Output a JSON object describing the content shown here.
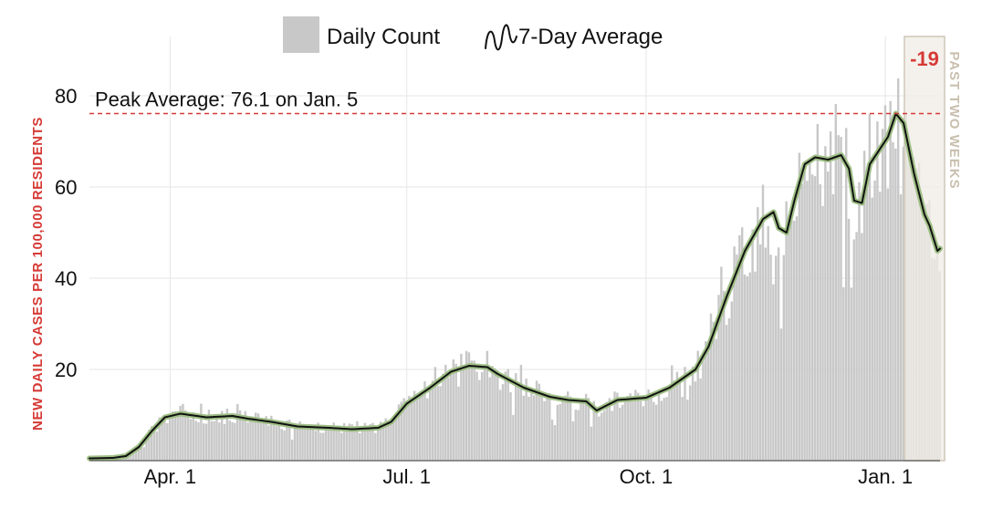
{
  "chart_data": {
    "type": "bar",
    "ylabel": "NEW DAILY CASES PER 100,000 RESIDENTS",
    "xlabel": "",
    "ylim": [
      0,
      93
    ],
    "yticks": [
      20,
      40,
      60,
      80
    ],
    "xtick_labels": [
      "Apr. 1",
      "Jul. 1",
      "Oct. 1",
      "Jan. 1"
    ],
    "grid": true,
    "legend": {
      "placement": "top-center",
      "items": [
        {
          "label": "Daily Count",
          "color": "#c8c8c8"
        },
        {
          "label": "7-Day Average",
          "color": "#111111"
        }
      ]
    },
    "peak_annotation": {
      "label": "Peak Average: 76.1 on Jan. 5",
      "value": 76.1
    },
    "window": {
      "label": "PAST TWO WEEKS",
      "change": "-19",
      "fill": "#f0ece6",
      "stroke": "#cfc7b8"
    },
    "colors": {
      "bars": "#c8c8c8",
      "average_line": "#111111",
      "average_halo": "#9fbf86",
      "peak_line": "#d63a36"
    },
    "x_range": [
      "2020-03-01",
      "2021-01-22"
    ],
    "window_start": "2021-01-09",
    "series": [
      {
        "name": "7-Day Average",
        "points": [
          [
            "2020-03-01",
            0.5
          ],
          [
            "2020-03-10",
            0.6
          ],
          [
            "2020-03-15",
            1.0
          ],
          [
            "2020-03-20",
            3.0
          ],
          [
            "2020-03-25",
            6.5
          ],
          [
            "2020-03-30",
            9.5
          ],
          [
            "2020-04-05",
            10.3
          ],
          [
            "2020-04-15",
            9.5
          ],
          [
            "2020-04-25",
            9.8
          ],
          [
            "2020-05-01",
            9.2
          ],
          [
            "2020-05-10",
            8.5
          ],
          [
            "2020-05-20",
            7.5
          ],
          [
            "2020-06-01",
            7.2
          ],
          [
            "2020-06-10",
            6.9
          ],
          [
            "2020-06-20",
            7.2
          ],
          [
            "2020-06-25",
            8.5
          ],
          [
            "2020-07-01",
            12.5
          ],
          [
            "2020-07-10",
            16.0
          ],
          [
            "2020-07-18",
            19.5
          ],
          [
            "2020-07-25",
            20.8
          ],
          [
            "2020-08-01",
            20.5
          ],
          [
            "2020-08-05",
            19.0
          ],
          [
            "2020-08-15",
            16.0
          ],
          [
            "2020-08-25",
            14.0
          ],
          [
            "2020-09-01",
            13.3
          ],
          [
            "2020-09-08",
            13.0
          ],
          [
            "2020-09-12",
            11.0
          ],
          [
            "2020-09-20",
            13.3
          ],
          [
            "2020-10-01",
            13.8
          ],
          [
            "2020-10-10",
            16.0
          ],
          [
            "2020-10-20",
            20.0
          ],
          [
            "2020-10-25",
            25.0
          ],
          [
            "2020-11-01",
            36.0
          ],
          [
            "2020-11-08",
            46.0
          ],
          [
            "2020-11-15",
            53.0
          ],
          [
            "2020-11-19",
            54.5
          ],
          [
            "2020-11-21",
            51.0
          ],
          [
            "2020-11-24",
            50.0
          ],
          [
            "2020-11-27",
            57.0
          ],
          [
            "2020-12-01",
            65.0
          ],
          [
            "2020-12-05",
            66.5
          ],
          [
            "2020-12-10",
            66.0
          ],
          [
            "2020-12-15",
            67.0
          ],
          [
            "2020-12-18",
            64.0
          ],
          [
            "2020-12-20",
            57.0
          ],
          [
            "2020-12-23",
            56.5
          ],
          [
            "2020-12-26",
            65.0
          ],
          [
            "2021-01-02",
            71.0
          ],
          [
            "2021-01-05",
            76.1
          ],
          [
            "2021-01-08",
            74.0
          ],
          [
            "2021-01-12",
            63.0
          ],
          [
            "2021-01-16",
            54.0
          ],
          [
            "2021-01-18",
            51.5
          ],
          [
            "2021-01-21",
            46.0
          ],
          [
            "2021-01-22",
            46.5
          ]
        ]
      }
    ]
  }
}
